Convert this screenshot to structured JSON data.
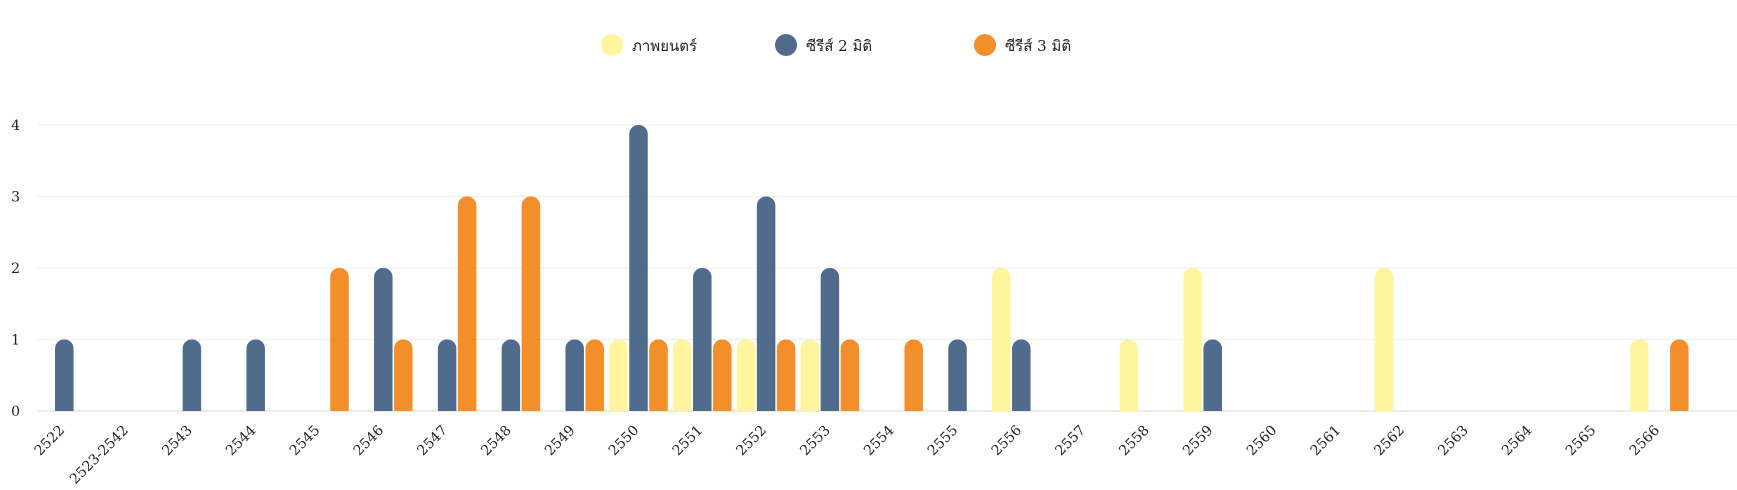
{
  "chart_data": {
    "type": "bar",
    "categories": [
      "2522",
      "2523-2542",
      "2543",
      "2544",
      "2545",
      "2546",
      "2547",
      "2548",
      "2549",
      "2550",
      "2551",
      "2552",
      "2553",
      "2554",
      "2555",
      "2556",
      "2557",
      "2558",
      "2559",
      "2560",
      "2561",
      "2562",
      "2563",
      "2564",
      "2565",
      "2566"
    ],
    "series": [
      {
        "name": "ภาพยนตร์",
        "color": "#fff59d",
        "values": [
          0,
          0,
          0,
          0,
          0,
          0,
          0,
          0,
          0,
          1,
          1,
          1,
          1,
          0,
          0,
          2,
          0,
          1,
          2,
          0,
          0,
          2,
          0,
          0,
          0,
          1
        ]
      },
      {
        "name": "ซีรีส์ 2 มิติ",
        "color": "#516b8d",
        "values": [
          1,
          0,
          1,
          1,
          0,
          2,
          1,
          1,
          1,
          4,
          2,
          3,
          2,
          0,
          1,
          1,
          0,
          0,
          1,
          0,
          0,
          0,
          0,
          0,
          0,
          0
        ]
      },
      {
        "name": "ซีรีส์ 3 มิติ",
        "color": "#f38f2a",
        "values": [
          0,
          0,
          0,
          0,
          2,
          1,
          3,
          3,
          1,
          1,
          1,
          1,
          1,
          1,
          0,
          0,
          0,
          0,
          0,
          0,
          0,
          0,
          0,
          0,
          0,
          1
        ]
      }
    ],
    "y_ticks": [
      "0",
      "1",
      "2",
      "3",
      "4"
    ],
    "ylim": [
      0,
      4
    ],
    "legend_position": "top-center",
    "grid": true
  }
}
